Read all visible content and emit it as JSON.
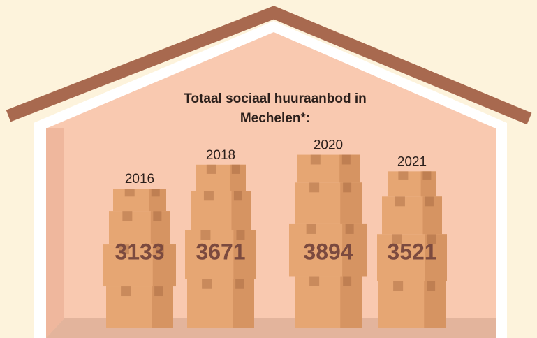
{
  "chart_data": {
    "type": "pictograph",
    "title": "Totaal sociaal huuraanbod in Mechelen*:",
    "categories": [
      "2016",
      "2018",
      "2020",
      "2021"
    ],
    "values": [
      3133,
      3671,
      3894,
      3521
    ]
  }
}
